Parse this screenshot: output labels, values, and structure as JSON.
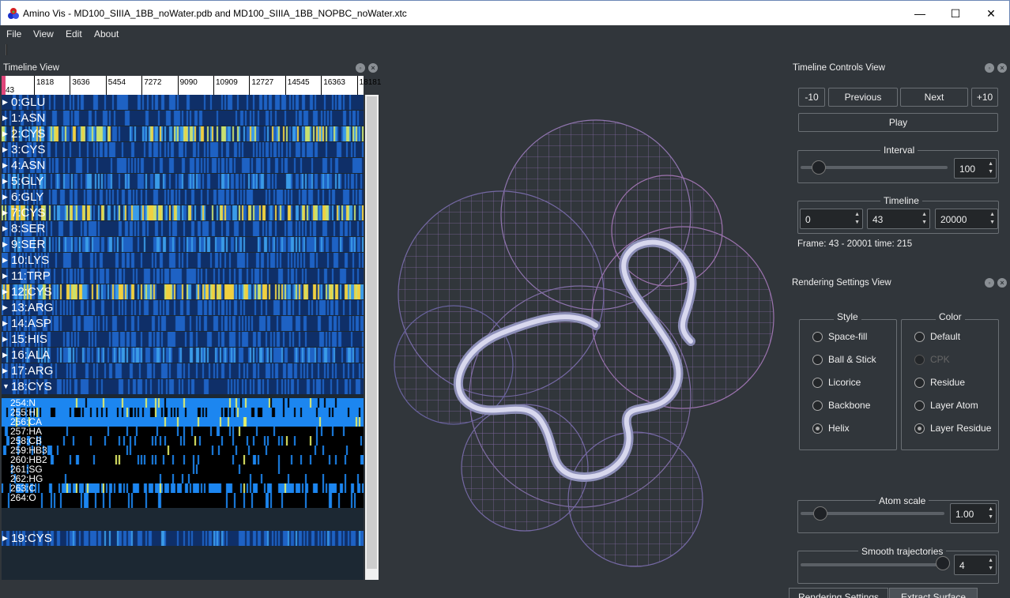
{
  "window": {
    "title": "Amino Vis - MD100_SIIIA_1BB_noWater.pdb and MD100_SIIIA_1BB_NOPBC_noWater.xtc",
    "min": "—",
    "max": "☐",
    "close": "✕"
  },
  "menu": [
    "File",
    "View",
    "Edit",
    "About"
  ],
  "timeline_view": {
    "title": "Timeline View",
    "ruler_ticks": [
      "1818",
      "3636",
      "5454",
      "7272",
      "9090",
      "10909",
      "12727",
      "14545",
      "16363",
      "18181"
    ],
    "current": "43",
    "residues": [
      "0:GLU",
      "1:ASN",
      "2:CYS",
      "3:CYS",
      "4:ASN",
      "5:GLY",
      "6:GLY",
      "7:CYS",
      "8:SER",
      "9:SER",
      "10:LYS",
      "11:TRP",
      "12:CYS",
      "13:ARG",
      "14:ASP",
      "15:HIS",
      "16:ALA",
      "17:ARG",
      "18:CYS"
    ],
    "atoms": [
      "254:N",
      "255:H",
      "256:CA",
      "257:HA",
      "258:CB",
      "259:HB3",
      "260:HB2",
      "261:SG",
      "262:HG",
      "263:C",
      "264:O"
    ],
    "last_residue": "19:CYS"
  },
  "timeline_controls": {
    "title": "Timeline Controls View",
    "minus10": "-10",
    "previous": "Previous",
    "next": "Next",
    "plus10": "+10",
    "play": "Play",
    "interval_label": "Interval",
    "interval_value": "100",
    "timeline_label": "Timeline",
    "t_start": "0",
    "t_current": "43",
    "t_end": "20000",
    "frame_info": "Frame: 43 - 20001 time: 215"
  },
  "rendering": {
    "title": "Rendering Settings View",
    "style_label": "Style",
    "styles": [
      "Space-fill",
      "Ball & Stick",
      "Licorice",
      "Backbone",
      "Helix"
    ],
    "style_selected": "Helix",
    "color_label": "Color",
    "colors": [
      "Default",
      "CPK",
      "Residue",
      "Layer Atom",
      "Layer Residue"
    ],
    "color_selected": "Layer Residue",
    "color_disabled": "CPK",
    "atom_scale_label": "Atom scale",
    "atom_scale_value": "1.00",
    "smooth_label": "Smooth trajectories",
    "smooth_value": "4"
  },
  "tabs": [
    "Rendering Settings View",
    "Extract Surface View"
  ],
  "colors": {
    "bg": "#31363b",
    "heat_low": "#0b1b3a",
    "heat_mid": "#1f6fd6",
    "heat_high": "#e8e64a",
    "mesh": "#a77fc7"
  }
}
